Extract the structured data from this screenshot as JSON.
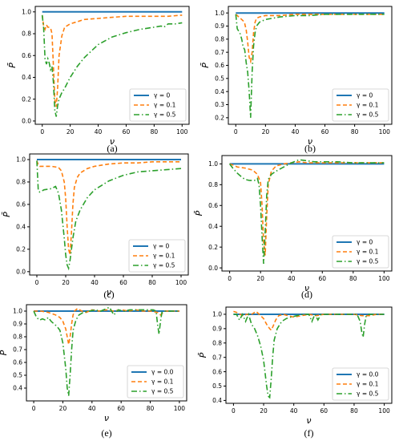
{
  "colors": {
    "s0": "#1f77b4",
    "s1": "#ff7f0e",
    "s2": "#2ca02c",
    "axis": "#000000"
  },
  "chart_data": [
    {
      "type": "line",
      "label": "(a)",
      "xlabel": "ν",
      "ylabel": "P̄",
      "xlim": [
        -5,
        105
      ],
      "ylim": [
        -0.03,
        1.05
      ],
      "xticks": [
        "0",
        "20",
        "40",
        "60",
        "80",
        "100"
      ],
      "xtick_values": [
        0,
        20,
        40,
        60,
        80,
        100
      ],
      "yticks": [
        "0.0",
        "0.2",
        "0.4",
        "0.6",
        "0.8",
        "1.0"
      ],
      "ytick_values": [
        0,
        0.2,
        0.4,
        0.6,
        0.8,
        1.0
      ],
      "legend_position": "lower-right",
      "grid": false,
      "series": [
        {
          "name": "γ = 0",
          "style": "solid",
          "x": [
            0,
            100
          ],
          "y": [
            1.0,
            1.0
          ]
        },
        {
          "name": "γ = 0.1",
          "style": "dashed",
          "x": [
            0,
            1,
            2,
            3,
            4,
            5,
            6,
            7,
            8,
            9,
            10,
            11,
            12,
            14,
            16,
            20,
            25,
            30,
            40,
            50,
            60,
            70,
            80,
            90,
            100
          ],
          "y": [
            0.97,
            0.87,
            0.84,
            0.88,
            0.86,
            0.86,
            0.85,
            0.8,
            0.5,
            0.2,
            0.13,
            0.3,
            0.6,
            0.78,
            0.86,
            0.89,
            0.91,
            0.93,
            0.94,
            0.95,
            0.96,
            0.96,
            0.96,
            0.96,
            0.97
          ]
        },
        {
          "name": "γ = 0.5",
          "style": "dashdot",
          "x": [
            0,
            1,
            2,
            3,
            4,
            5,
            6,
            7,
            8,
            9,
            10,
            11,
            12,
            13,
            14,
            16,
            18,
            20,
            25,
            30,
            35,
            40,
            50,
            60,
            70,
            80,
            85,
            87,
            88,
            90,
            95,
            100
          ],
          "y": [
            0.97,
            0.85,
            0.57,
            0.52,
            0.57,
            0.53,
            0.47,
            0.5,
            0.35,
            0.1,
            0.04,
            0.14,
            0.2,
            0.23,
            0.26,
            0.3,
            0.35,
            0.4,
            0.5,
            0.58,
            0.64,
            0.7,
            0.77,
            0.81,
            0.84,
            0.86,
            0.87,
            0.86,
            0.87,
            0.89,
            0.89,
            0.9
          ]
        }
      ]
    },
    {
      "type": "line",
      "label": "(b)",
      "xlabel": "ν",
      "ylabel": "P̄",
      "xlim": [
        -5,
        105
      ],
      "ylim": [
        0.15,
        1.05
      ],
      "xticks": [
        "0",
        "20",
        "40",
        "60",
        "80",
        "100"
      ],
      "xtick_values": [
        0,
        20,
        40,
        60,
        80,
        100
      ],
      "yticks": [
        "0.2",
        "0.3",
        "0.4",
        "0.5",
        "0.6",
        "0.7",
        "0.8",
        "0.9",
        "1.0"
      ],
      "ytick_values": [
        0.2,
        0.3,
        0.4,
        0.5,
        0.6,
        0.7,
        0.8,
        0.9,
        1.0
      ],
      "legend_position": "lower-right",
      "grid": false,
      "series": [
        {
          "name": "γ = 0",
          "style": "solid",
          "x": [
            0,
            100
          ],
          "y": [
            1.0,
            1.0
          ]
        },
        {
          "name": "γ = 0.1",
          "style": "dashed",
          "x": [
            0,
            1,
            2,
            3,
            4,
            5,
            6,
            7,
            8,
            9,
            10,
            11,
            12,
            13,
            14,
            16,
            20,
            30,
            40,
            50,
            60,
            70,
            80,
            90,
            100
          ],
          "y": [
            0.99,
            0.98,
            0.97,
            0.96,
            0.95,
            0.94,
            0.92,
            0.87,
            0.78,
            0.66,
            0.63,
            0.7,
            0.85,
            0.93,
            0.96,
            0.97,
            0.98,
            0.98,
            0.99,
            0.99,
            0.99,
            0.99,
            0.99,
            0.99,
            0.99
          ]
        },
        {
          "name": "γ = 0.5",
          "style": "dashdot",
          "x": [
            0,
            1,
            2,
            3,
            4,
            5,
            6,
            7,
            8,
            9,
            10,
            11,
            12,
            13,
            14,
            16,
            20,
            25,
            30,
            40,
            50,
            60,
            70,
            80,
            90,
            100
          ],
          "y": [
            0.99,
            0.88,
            0.86,
            0.84,
            0.8,
            0.74,
            0.72,
            0.62,
            0.55,
            0.4,
            0.2,
            0.55,
            0.75,
            0.85,
            0.9,
            0.93,
            0.95,
            0.96,
            0.97,
            0.98,
            0.98,
            0.99,
            0.99,
            0.99,
            0.99,
            0.99
          ]
        }
      ]
    },
    {
      "type": "line",
      "label": "(c)",
      "xlabel": "ν",
      "ylabel": "P̄",
      "xlim": [
        -5,
        105
      ],
      "ylim": [
        -0.03,
        1.05
      ],
      "xticks": [
        "0",
        "20",
        "40",
        "60",
        "80",
        "100"
      ],
      "xtick_values": [
        0,
        20,
        40,
        60,
        80,
        100
      ],
      "yticks": [
        "0.0",
        "0.2",
        "0.4",
        "0.6",
        "0.8",
        "1.0"
      ],
      "ytick_values": [
        0,
        0.2,
        0.4,
        0.6,
        0.8,
        1.0
      ],
      "legend_position": "lower-right",
      "grid": false,
      "series": [
        {
          "name": "γ = 0",
          "style": "solid",
          "x": [
            0,
            100
          ],
          "y": [
            1.0,
            1.0
          ]
        },
        {
          "name": "γ = 0.1",
          "style": "dashed",
          "x": [
            0,
            1,
            2,
            5,
            10,
            15,
            17,
            19,
            20,
            21,
            22,
            23,
            24,
            25,
            26,
            28,
            30,
            35,
            40,
            50,
            60,
            70,
            80,
            90,
            100
          ],
          "y": [
            0.99,
            0.95,
            0.94,
            0.94,
            0.94,
            0.93,
            0.9,
            0.8,
            0.65,
            0.4,
            0.2,
            0.15,
            0.35,
            0.6,
            0.75,
            0.84,
            0.88,
            0.92,
            0.94,
            0.96,
            0.97,
            0.97,
            0.98,
            0.98,
            0.98
          ]
        },
        {
          "name": "γ = 0.5",
          "style": "dashdot",
          "x": [
            0,
            1,
            2,
            5,
            10,
            13,
            15,
            17,
            19,
            20,
            21,
            22,
            23,
            24,
            25,
            27,
            30,
            35,
            40,
            50,
            60,
            70,
            80,
            90,
            100
          ],
          "y": [
            0.99,
            0.72,
            0.71,
            0.73,
            0.74,
            0.76,
            0.7,
            0.55,
            0.3,
            0.15,
            0.06,
            0.03,
            0.1,
            0.2,
            0.3,
            0.45,
            0.55,
            0.66,
            0.73,
            0.81,
            0.86,
            0.89,
            0.9,
            0.91,
            0.92
          ]
        }
      ]
    },
    {
      "type": "line",
      "label": "(d)",
      "xlabel": "ν",
      "ylabel": "P̄",
      "xlim": [
        -5,
        105
      ],
      "ylim": [
        -0.03,
        1.08
      ],
      "xticks": [
        "0",
        "20",
        "40",
        "60",
        "80",
        "100"
      ],
      "xtick_values": [
        0,
        20,
        40,
        60,
        80,
        100
      ],
      "yticks": [
        "0.0",
        "0.2",
        "0.4",
        "0.6",
        "0.8",
        "1.0"
      ],
      "ytick_values": [
        0,
        0.2,
        0.4,
        0.6,
        0.8,
        1.0
      ],
      "legend_position": "lower-right",
      "grid": false,
      "series": [
        {
          "name": "γ = 0",
          "style": "solid",
          "x": [
            0,
            100
          ],
          "y": [
            1.0,
            1.0
          ]
        },
        {
          "name": "γ = 0.1",
          "style": "dashed",
          "x": [
            0,
            2,
            5,
            10,
            15,
            18,
            20,
            21,
            22,
            23,
            24,
            25,
            27,
            30,
            35,
            40,
            45,
            50,
            60,
            70,
            80,
            90,
            100
          ],
          "y": [
            1.0,
            0.99,
            0.97,
            0.96,
            0.94,
            0.9,
            0.82,
            0.6,
            0.25,
            0.12,
            0.5,
            0.8,
            0.93,
            0.98,
            1.0,
            1.01,
            1.02,
            1.01,
            1.01,
            1.01,
            1.01,
            1.01,
            1.01
          ]
        },
        {
          "name": "γ = 0.5",
          "style": "dashdot",
          "x": [
            0,
            2,
            5,
            8,
            10,
            13,
            16,
            18,
            19,
            20,
            21,
            22,
            23,
            24,
            25,
            27,
            30,
            35,
            40,
            45,
            50,
            55,
            60,
            70,
            80,
            90,
            100
          ],
          "y": [
            1.0,
            0.96,
            0.91,
            0.87,
            0.85,
            0.84,
            0.84,
            0.86,
            0.8,
            0.6,
            0.3,
            0.04,
            0.35,
            0.7,
            0.85,
            0.9,
            0.93,
            0.97,
            1.01,
            1.04,
            1.03,
            1.02,
            1.02,
            1.02,
            1.01,
            1.01,
            1.01
          ]
        }
      ]
    },
    {
      "type": "line",
      "label": "(e)",
      "xlabel": "ν",
      "ylabel": "P̄",
      "xlim": [
        -5,
        105
      ],
      "ylim": [
        0.3,
        1.05
      ],
      "xticks": [
        "0",
        "20",
        "40",
        "60",
        "80",
        "100"
      ],
      "xtick_values": [
        0,
        20,
        40,
        60,
        80,
        100
      ],
      "yticks": [
        "0.4",
        "0.5",
        "0.6",
        "0.7",
        "0.8",
        "0.9",
        "1.0"
      ],
      "ytick_values": [
        0.4,
        0.5,
        0.6,
        0.7,
        0.8,
        0.9,
        1.0
      ],
      "legend_position": "lower-right",
      "grid": false,
      "series": [
        {
          "name": "γ = 0.0",
          "style": "solid",
          "x": [
            0,
            100
          ],
          "y": [
            1.0,
            1.0
          ]
        },
        {
          "name": "γ = 0.1",
          "style": "dashed",
          "x": [
            0,
            5,
            10,
            15,
            18,
            20,
            22,
            23,
            24,
            25,
            26,
            27,
            28,
            30,
            33,
            36,
            40,
            45,
            50,
            55,
            60,
            65,
            70,
            75,
            80,
            85,
            87,
            90,
            95,
            100
          ],
          "y": [
            1.0,
            1.0,
            0.99,
            0.97,
            0.95,
            0.92,
            0.86,
            0.8,
            0.74,
            0.8,
            0.9,
            0.97,
            1.0,
            1.02,
            1.0,
            0.99,
            1.01,
            1.0,
            1.01,
            1.0,
            1.01,
            1.0,
            1.01,
            1.0,
            1.0,
            0.99,
            0.97,
            1.0,
            1.0,
            1.0
          ]
        },
        {
          "name": "γ = 0.5",
          "style": "dashdot",
          "x": [
            0,
            2,
            4,
            6,
            8,
            10,
            12,
            14,
            16,
            18,
            20,
            22,
            23,
            24,
            25,
            26,
            27,
            29,
            31,
            34,
            38,
            42,
            46,
            50,
            52,
            55,
            58,
            62,
            66,
            70,
            74,
            78,
            82,
            84,
            85,
            86,
            87,
            88,
            90,
            95,
            100
          ],
          "y": [
            1.0,
            0.95,
            0.93,
            0.94,
            0.93,
            0.95,
            0.92,
            0.9,
            0.88,
            0.85,
            0.75,
            0.55,
            0.4,
            0.34,
            0.5,
            0.7,
            0.85,
            0.93,
            0.97,
            0.99,
            1.0,
            1.01,
            1.0,
            1.02,
            1.03,
            0.97,
            1.01,
            1.0,
            1.01,
            1.01,
            1.01,
            1.01,
            1.01,
            1.0,
            0.9,
            0.82,
            0.92,
            0.99,
            1.0,
            1.0,
            1.0
          ]
        }
      ]
    },
    {
      "type": "line",
      "label": "(f)",
      "xlabel": "ν",
      "ylabel": "P̄",
      "xlim": [
        -5,
        105
      ],
      "ylim": [
        0.38,
        1.05
      ],
      "xticks": [
        "0",
        "20",
        "40",
        "60",
        "80",
        "100"
      ],
      "xtick_values": [
        0,
        20,
        40,
        60,
        80,
        100
      ],
      "yticks": [
        "0.4",
        "0.5",
        "0.6",
        "0.7",
        "0.8",
        "0.9",
        "1.0"
      ],
      "ytick_values": [
        0.4,
        0.5,
        0.6,
        0.7,
        0.8,
        0.9,
        1.0
      ],
      "legend_position": "lower-right",
      "grid": false,
      "series": [
        {
          "name": "γ = 0.0",
          "style": "solid",
          "x": [
            0,
            100
          ],
          "y": [
            1.0,
            1.0
          ]
        },
        {
          "name": "γ = 0.1",
          "style": "dashed",
          "x": [
            0,
            3,
            6,
            9,
            12,
            15,
            18,
            20,
            22,
            24,
            25,
            26,
            28,
            30,
            33,
            36,
            40,
            45,
            50,
            55,
            60,
            65,
            70,
            75,
            80,
            85,
            90,
            95,
            100
          ],
          "y": [
            1.02,
            1.01,
            0.99,
            1.0,
            1.0,
            1.02,
            0.99,
            0.97,
            0.93,
            0.9,
            0.89,
            0.91,
            0.96,
            0.99,
            1.0,
            0.99,
            0.98,
            0.99,
            1.0,
            0.99,
            1.0,
            1.0,
            1.0,
            1.0,
            1.0,
            0.99,
            0.99,
            1.0,
            1.0
          ]
        },
        {
          "name": "γ = 0.5",
          "style": "dashdot",
          "x": [
            0,
            2,
            4,
            6,
            8,
            10,
            12,
            14,
            16,
            18,
            20,
            22,
            23,
            24,
            25,
            26,
            27,
            29,
            32,
            35,
            38,
            42,
            46,
            50,
            52,
            54,
            56,
            58,
            62,
            66,
            70,
            74,
            78,
            82,
            84,
            85,
            86,
            87,
            88,
            90,
            95,
            100
          ],
          "y": [
            1.0,
            1.0,
            0.96,
            1.0,
            0.95,
            1.0,
            0.93,
            0.9,
            0.85,
            0.78,
            0.68,
            0.5,
            0.43,
            0.42,
            0.55,
            0.7,
            0.82,
            0.9,
            0.95,
            0.97,
            0.98,
            0.99,
            1.0,
            1.0,
            0.95,
            1.0,
            0.96,
            1.0,
            1.0,
            1.0,
            1.0,
            1.0,
            1.0,
            1.0,
            0.95,
            0.88,
            0.84,
            0.93,
            0.99,
            1.0,
            1.0,
            1.0
          ]
        }
      ]
    }
  ]
}
